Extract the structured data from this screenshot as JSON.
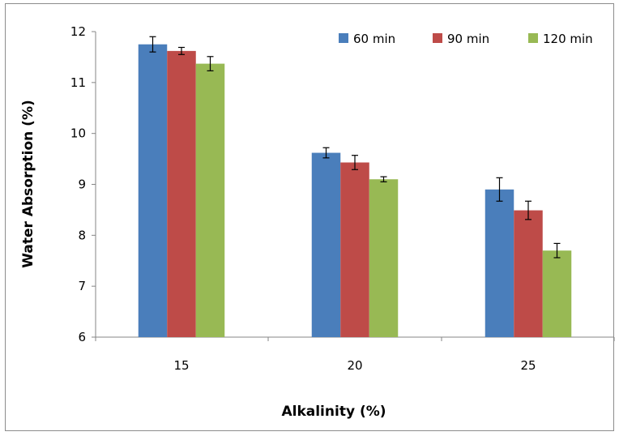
{
  "chart_data": {
    "type": "bar",
    "title": "",
    "xlabel": "Alkalinity (%)",
    "ylabel": "Water Absorption (%)",
    "categories": [
      "15",
      "20",
      "25"
    ],
    "ylim": [
      6,
      12
    ],
    "yticks": [
      "6",
      "7",
      "8",
      "9",
      "10",
      "11",
      "12"
    ],
    "grid": false,
    "legend_position": "top-right",
    "series": [
      {
        "name": "60 min",
        "color": "#4a7ebb",
        "values": [
          11.75,
          9.62,
          8.9
        ],
        "errors": [
          0.15,
          0.1,
          0.23
        ]
      },
      {
        "name": "90 min",
        "color": "#be4b48",
        "values": [
          11.62,
          9.43,
          8.49
        ],
        "errors": [
          0.07,
          0.14,
          0.18
        ]
      },
      {
        "name": "120 min",
        "color": "#98b954",
        "values": [
          11.37,
          9.1,
          7.7
        ],
        "errors": [
          0.14,
          0.05,
          0.14
        ]
      }
    ]
  }
}
